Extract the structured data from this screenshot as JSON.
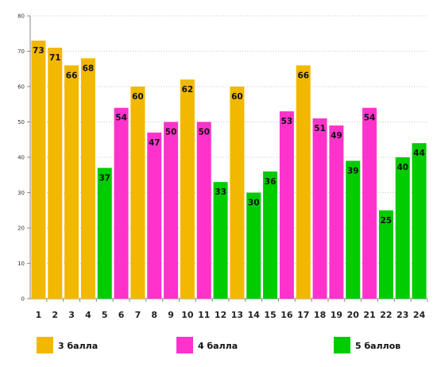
{
  "chart_data": {
    "type": "bar",
    "categories": [
      "1",
      "2",
      "3",
      "4",
      "5",
      "6",
      "7",
      "8",
      "9",
      "10",
      "11",
      "12",
      "13",
      "14",
      "15",
      "16",
      "17",
      "18",
      "19",
      "20",
      "21",
      "22",
      "23",
      "24"
    ],
    "values": [
      73,
      71,
      66,
      68,
      37,
      54,
      60,
      47,
      50,
      62,
      50,
      33,
      60,
      30,
      36,
      53,
      66,
      51,
      49,
      39,
      54,
      25,
      40,
      44
    ],
    "groups": [
      "3 балла",
      "3 балла",
      "3 балла",
      "3 балла",
      "5 баллов",
      "4 балла",
      "3 балла",
      "4 балла",
      "4 балла",
      "3 балла",
      "4 балла",
      "5 баллов",
      "3 балла",
      "5 баллов",
      "5 баллов",
      "4 балла",
      "3 балла",
      "4 балла",
      "4 балла",
      "5 баллов",
      "4 балла",
      "5 баллов",
      "5 баллов",
      "5 баллов"
    ],
    "series": [
      {
        "name": "3 балла",
        "color": "#F2B800"
      },
      {
        "name": "4 балла",
        "color": "#FF33CC"
      },
      {
        "name": "5 баллов",
        "color": "#00CC00"
      }
    ],
    "ylim": [
      0,
      80
    ],
    "yticks": [
      0,
      10,
      20,
      30,
      40,
      50,
      60,
      70,
      80
    ],
    "grid": true,
    "legend": "bottom",
    "data_labels": true
  }
}
